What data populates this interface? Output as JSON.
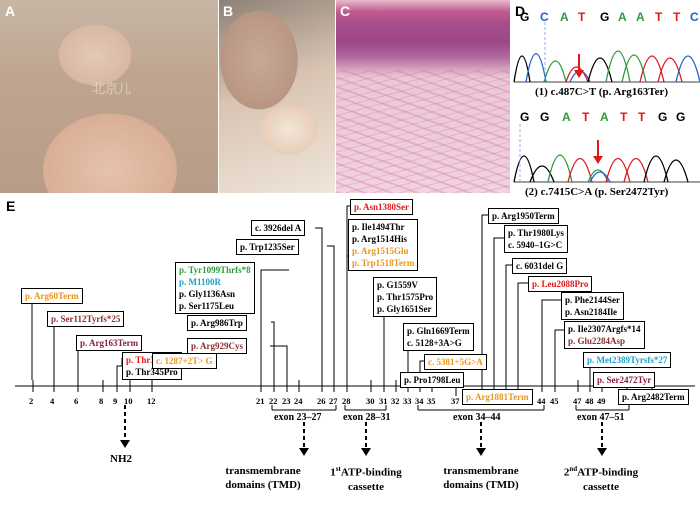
{
  "panels": {
    "a": "A",
    "b": "B",
    "c": "C",
    "d": "D",
    "e": "E"
  },
  "photo_watermark": "北京儿",
  "seq1": {
    "letters": [
      "G",
      "C",
      "A",
      "T",
      "G",
      "A",
      "A",
      "T",
      "T",
      "C"
    ],
    "colors": [
      "#000000",
      "#1f5fd0",
      "#2e9b3a",
      "#e01818",
      "#000000",
      "#2e9b3a",
      "#2e9b3a",
      "#e01818",
      "#e01818",
      "#1f5fd0"
    ],
    "caption": "(1) c.487C>T (p. Arg163Ter)"
  },
  "seq2": {
    "letters": [
      "G",
      "G",
      "A",
      "T",
      "A",
      "T",
      "T",
      "G",
      "G"
    ],
    "colors": [
      "#000000",
      "#000000",
      "#2e9b3a",
      "#e01818",
      "#2e9b3a",
      "#e01818",
      "#e01818",
      "#000000",
      "#000000"
    ],
    "caption": "(2) c.7415C>A (p. Ser2472Tyr)"
  },
  "exon_ticks": [
    "2",
    "4",
    "6",
    "8",
    "9",
    "10",
    "12",
    "21",
    "22",
    "23",
    "24",
    "26",
    "27",
    "28",
    "30",
    "31",
    "32",
    "33",
    "34",
    "35",
    "37",
    "39",
    "40",
    "41",
    "42",
    "44",
    "45",
    "47",
    "48",
    "49",
    "51",
    "53"
  ],
  "exon_groups": [
    "exon 23–27",
    "exon 28–31",
    "exon 34–44",
    "exon 47–51"
  ],
  "domains": {
    "nh2": "NH2",
    "tmd1": [
      "transmembrane",
      "domains (TMD)"
    ],
    "abc1": [
      "1",
      "st",
      "ATP-binding",
      "cassette"
    ],
    "tmd2": [
      "transmembrane",
      "domains (TMD)"
    ],
    "abc2": [
      "2",
      "nd",
      "ATP-binding",
      "cassette"
    ]
  },
  "mutations": {
    "arg60": {
      "text": "p. Arg60Term",
      "color": "#e8951a"
    },
    "ser112": {
      "text": "p. Ser112Tyrfs*25",
      "color": "#8b2e2e"
    },
    "arg163": {
      "text": "p. Arg163Term",
      "color": "#8b1a4a"
    },
    "thr335": {
      "text": "p. Thr335fs",
      "color": "#e01818"
    },
    "thr345": {
      "text": "p. Thr345Pro",
      "color": "#000000"
    },
    "c1287": {
      "text": "c. 1287+2T> G",
      "color": "#e8951a"
    },
    "g1": [
      {
        "text": "p. Tyr1099Thrfs*8",
        "color": "#2e9b3a"
      },
      {
        "text": "p. M1100R",
        "color": "#1f9fc9"
      },
      {
        "text": "p. Gly1136Asn",
        "color": "#000000"
      },
      {
        "text": "p. Ser1175Leu",
        "color": "#000000"
      }
    ],
    "arg986": {
      "text": "p. Arg986Trp",
      "color": "#000000"
    },
    "arg929": {
      "text": "p. Arg929Cys",
      "color": "#8b2e2e"
    },
    "trp1235": {
      "text": "p. Trp1235Ser",
      "color": "#000000"
    },
    "c3926": {
      "text": "c. 3926del A",
      "color": "#000000"
    },
    "asn1380": {
      "text": "p. Asn1380Ser",
      "color": "#e01818"
    },
    "g2": [
      {
        "text": "p. Ile1494Thr",
        "color": "#000000"
      },
      {
        "text": "p. Arg1514His",
        "color": "#000000"
      },
      {
        "text": "p. Arg1515Glu",
        "color": "#e8951a"
      },
      {
        "text": "p. Trp1518Term",
        "color": "#e8951a"
      }
    ],
    "g3": [
      {
        "text": "p. G1559V",
        "color": "#000000"
      },
      {
        "text": "p. Thr1575Pro",
        "color": "#000000"
      },
      {
        "text": "p. Gly1651Ser",
        "color": "#000000"
      }
    ],
    "g4": [
      {
        "text": "p. Gln1669Term",
        "color": "#000000"
      },
      {
        "text": "c. 5128+3A>G",
        "color": "#000000"
      }
    ],
    "c5381": {
      "text": "c. 5381+5G>A",
      "color": "#e8951a"
    },
    "pro1798": {
      "text": "p. Pro1798Leu",
      "color": "#000000"
    },
    "arg1881": {
      "text": "p. Arg1881Term",
      "color": "#e8951a"
    },
    "arg1950": {
      "text": "p. Arg1950Term",
      "color": "#000000"
    },
    "g5": [
      {
        "text": "p. Thr1980Lys",
        "color": "#000000"
      },
      {
        "text": "c. 5940–1G>C",
        "color": "#000000"
      }
    ],
    "c6031": {
      "text": "c. 6031del G",
      "color": "#000000"
    },
    "leu2088": {
      "text": "p. Leu2088Pro",
      "color": "#e01818"
    },
    "g6": [
      {
        "text": "p. Phe2144Ser",
        "color": "#000000"
      },
      {
        "text": "p. Asn2184Ile",
        "color": "#000000"
      }
    ],
    "g7": [
      {
        "text": "p. Ile2307Argfs*14",
        "color": "#000000"
      },
      {
        "text": "p. Glu2284Asp",
        "color": "#8b2e2e"
      }
    ],
    "met2389": {
      "text": "p. Met2389Tyrsfs*27",
      "color": "#1f9fc9"
    },
    "ser2472": {
      "text": "p. Ser2472Tyr",
      "color": "#8b1a4a"
    },
    "arg2482": {
      "text": "p. Arg2482Term",
      "color": "#000000"
    }
  }
}
